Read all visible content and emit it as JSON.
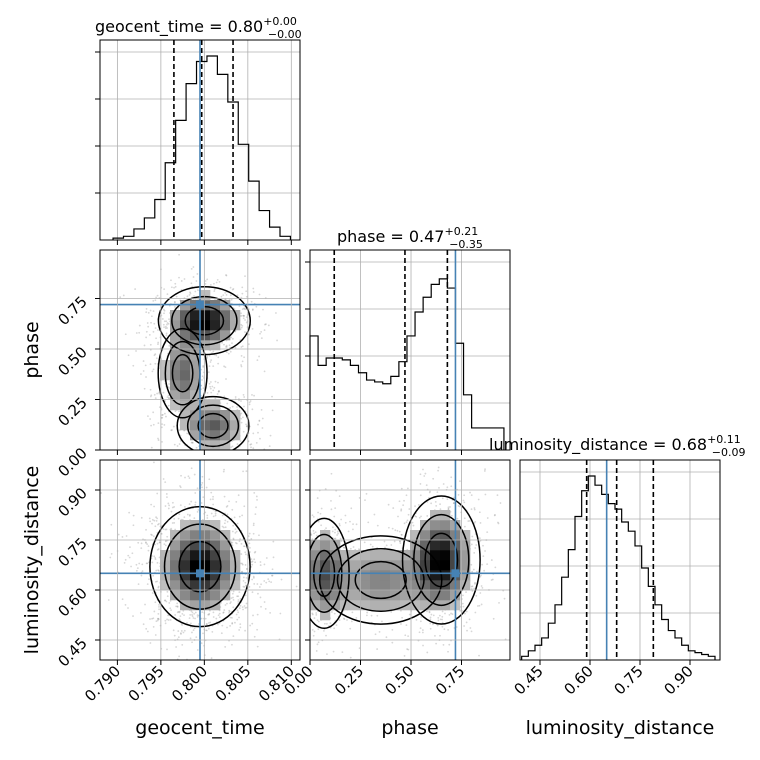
{
  "chart_data": {
    "type": "corner",
    "parameters": [
      "geocent_time",
      "phase",
      "luminosity_distance"
    ],
    "injection": {
      "geocent_time": 0.7995,
      "phase": 0.72,
      "luminosity_distance": 0.65
    },
    "titles": {
      "geocent_time": {
        "name": "geocent_time",
        "median": "0.80",
        "plus": "+0.00",
        "minus": "−0.00"
      },
      "phase": {
        "name": "phase",
        "median": "0.47",
        "plus": "+0.21",
        "minus": "−0.35"
      },
      "luminosity_distance": {
        "name": "luminosity_distance",
        "median": "0.68",
        "plus": "+0.11",
        "minus": "−0.09"
      }
    },
    "axes": {
      "geocent_time": {
        "range": [
          0.788,
          0.811
        ],
        "ticks": [
          0.79,
          0.795,
          0.8,
          0.805,
          0.81
        ],
        "tick_labels": [
          "0.790",
          "0.795",
          "0.800",
          "0.805",
          "0.810"
        ]
      },
      "phase": {
        "range": [
          0.0,
          0.99
        ],
        "ticks": [
          0.0,
          0.25,
          0.5,
          0.75
        ],
        "tick_labels": [
          "0.00",
          "0.25",
          "0.50",
          "0.75"
        ]
      },
      "luminosity_distance": {
        "range": [
          0.39,
          0.99
        ],
        "ticks": [
          0.45,
          0.6,
          0.75,
          0.9
        ],
        "tick_labels": [
          "0.45",
          "0.60",
          "0.75",
          "0.90"
        ]
      }
    },
    "histograms": {
      "geocent_time": {
        "bins": [
          0.7901,
          0.7913,
          0.7925,
          0.7937,
          0.7949,
          0.7961,
          0.7973,
          0.7985,
          0.7997,
          0.8009,
          0.8021,
          0.8033,
          0.8045,
          0.8057,
          0.8069,
          0.8081,
          0.8093
        ],
        "counts": [
          0.01,
          0.02,
          0.06,
          0.12,
          0.22,
          0.42,
          0.65,
          0.85,
          0.97,
          1.0,
          0.9,
          0.75,
          0.52,
          0.32,
          0.16,
          0.07,
          0.02
        ],
        "quantiles": [
          0.7965,
          0.7997,
          0.8033
        ]
      },
      "phase": {
        "bins": [
          0.02,
          0.06,
          0.1,
          0.14,
          0.18,
          0.22,
          0.26,
          0.3,
          0.34,
          0.38,
          0.42,
          0.46,
          0.5,
          0.54,
          0.58,
          0.62,
          0.66,
          0.7,
          0.74,
          0.78,
          0.82,
          0.86,
          0.9,
          0.94
        ],
        "counts": [
          0.62,
          0.46,
          0.5,
          0.5,
          0.49,
          0.46,
          0.42,
          0.38,
          0.37,
          0.36,
          0.4,
          0.48,
          0.62,
          0.75,
          0.83,
          0.9,
          0.93,
          0.88,
          0.58,
          0.3,
          0.12,
          0.12,
          0.12,
          0.12
        ],
        "quantiles": [
          0.12,
          0.47,
          0.68
        ]
      },
      "luminosity_distance": {
        "bins": [
          0.405,
          0.425,
          0.445,
          0.465,
          0.485,
          0.505,
          0.525,
          0.545,
          0.565,
          0.585,
          0.605,
          0.625,
          0.645,
          0.665,
          0.685,
          0.705,
          0.725,
          0.745,
          0.765,
          0.785,
          0.805,
          0.825,
          0.845,
          0.865,
          0.885,
          0.905,
          0.925,
          0.945,
          0.965
        ],
        "counts": [
          0.02,
          0.05,
          0.08,
          0.12,
          0.2,
          0.3,
          0.45,
          0.6,
          0.78,
          0.92,
          1.0,
          0.95,
          0.9,
          0.85,
          0.82,
          0.75,
          0.7,
          0.62,
          0.5,
          0.4,
          0.3,
          0.22,
          0.16,
          0.12,
          0.08,
          0.05,
          0.04,
          0.03,
          0.02
        ],
        "quantiles": [
          0.59,
          0.68,
          0.79
        ]
      }
    },
    "density_panels": [
      {
        "x": "geocent_time",
        "y": "phase",
        "modes": [
          {
            "cx": 0.8,
            "cy": 0.64,
            "sx": 0.0022,
            "sy": 0.07,
            "w": 1.0
          },
          {
            "cx": 0.7975,
            "cy": 0.38,
            "sx": 0.0014,
            "sy": 0.11,
            "w": 0.55
          },
          {
            "cx": 0.801,
            "cy": 0.12,
            "sx": 0.002,
            "sy": 0.07,
            "w": 0.6
          }
        ]
      },
      {
        "x": "geocent_time",
        "y": "luminosity_distance",
        "modes": [
          {
            "cx": 0.7995,
            "cy": 0.67,
            "sx": 0.0024,
            "sy": 0.075,
            "w": 1.0
          }
        ]
      },
      {
        "x": "phase",
        "y": "luminosity_distance",
        "modes": [
          {
            "cx": 0.65,
            "cy": 0.69,
            "sx": 0.08,
            "sy": 0.08,
            "w": 1.0
          },
          {
            "cx": 0.07,
            "cy": 0.65,
            "sx": 0.06,
            "sy": 0.08,
            "w": 0.6
          },
          {
            "cx": 0.35,
            "cy": 0.63,
            "sx": 0.16,
            "sy": 0.07,
            "w": 0.45
          }
        ]
      }
    ],
    "colors": {
      "truth": "#4682b4",
      "contour": "#000000",
      "grid": "#b0b0b0",
      "scatter": "#8c8c8c"
    }
  },
  "axis_labels": {
    "geocent_time": "geocent_time",
    "phase": "phase",
    "luminosity_distance": "luminosity_distance"
  }
}
